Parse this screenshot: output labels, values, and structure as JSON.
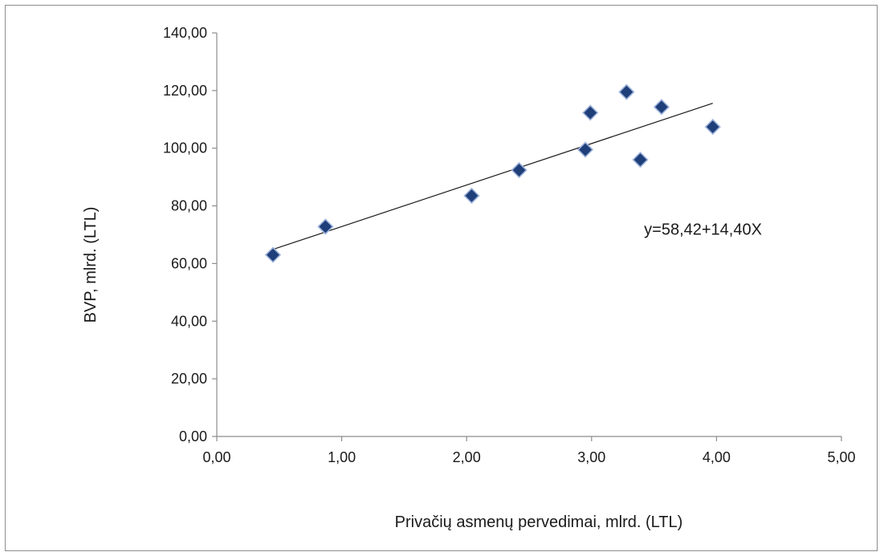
{
  "chart_data": {
    "type": "scatter",
    "title": "",
    "xlabel": "Privačių asmenų pervedimai, mlrd. (LTL)",
    "ylabel": "BVP, mlrd. (LTL)",
    "xlim": [
      0,
      5
    ],
    "ylim": [
      0,
      140
    ],
    "x_ticks": [
      0,
      1,
      2,
      3,
      4,
      5
    ],
    "y_ticks": [
      0,
      20,
      40,
      60,
      80,
      100,
      120,
      140
    ],
    "x_tick_labels": [
      "0,00",
      "1,00",
      "2,00",
      "3,00",
      "4,00",
      "5,00"
    ],
    "y_tick_labels": [
      "0,00",
      "20,00",
      "40,00",
      "60,00",
      "80,00",
      "100,00",
      "120,00",
      "140,00"
    ],
    "grid": false,
    "legend": "none",
    "marker": "diamond",
    "marker_color": "#1f3f7a",
    "series": [
      {
        "x": [
          0.45,
          0.87,
          2.04,
          2.42,
          2.95,
          2.99,
          3.28,
          3.39,
          3.56,
          3.97
        ],
        "y": [
          63.0,
          72.8,
          83.5,
          92.4,
          99.5,
          112.3,
          119.5,
          96.0,
          114.3,
          107.4
        ]
      }
    ],
    "trendline": {
      "intercept": 58.42,
      "slope": 14.4,
      "x_range": [
        0.45,
        3.97
      ],
      "color": "#1a1a1a"
    },
    "annotations": [
      {
        "text": "y=58,42+14,40X",
        "x": 3.42,
        "y": 70
      }
    ]
  }
}
